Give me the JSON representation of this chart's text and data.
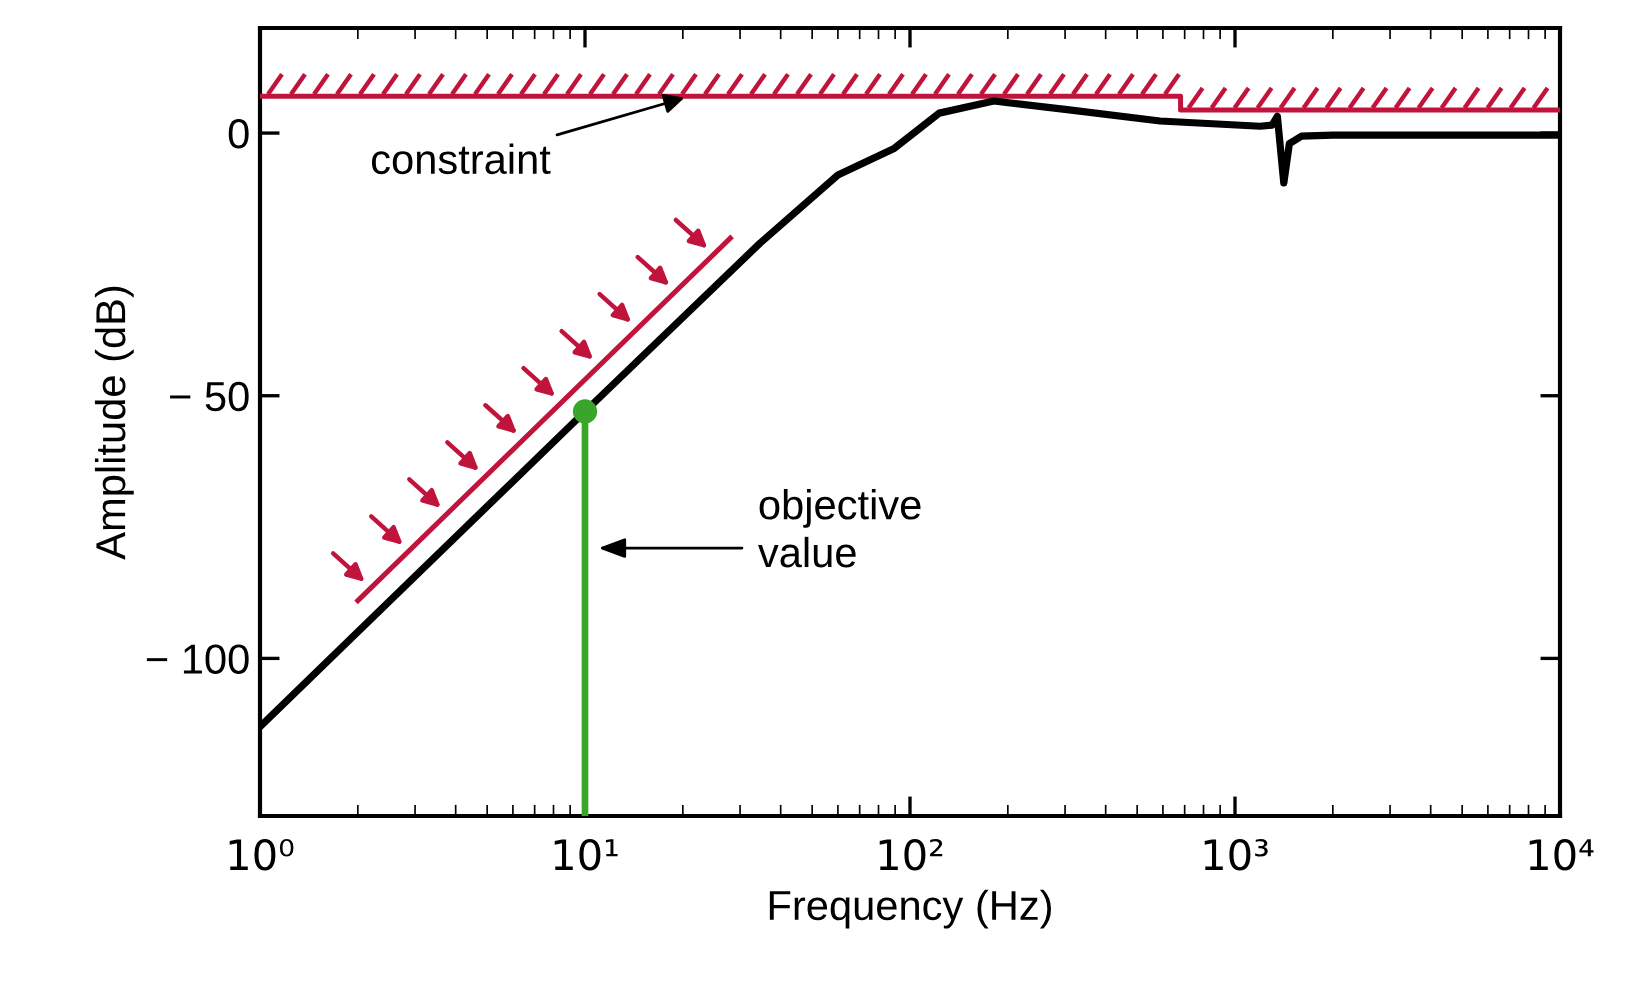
{
  "chart_data": {
    "type": "line",
    "xlabel": "Frequency (Hz)",
    "ylabel": "Amplitude (dB)",
    "log": "x",
    "xlim": [
      1,
      10000
    ],
    "xticks": [
      {
        "value": 1,
        "label": "10⁰"
      },
      {
        "value": 10,
        "label": "10¹"
      },
      {
        "value": 100,
        "label": "10²"
      },
      {
        "value": 1000,
        "label": "10³"
      },
      {
        "value": 10000,
        "label": "10⁴"
      }
    ],
    "ylim": [
      -130,
      20
    ],
    "yticks": [
      {
        "value": -100,
        "label": "− 100"
      },
      {
        "value": -50,
        "label": "− 50"
      },
      0
    ],
    "grid": false,
    "line_style": "solid",
    "series": [
      {
        "type": "step",
        "color": "#c0143c",
        "x": [
          1,
          680,
          10000
        ],
        "values": [
          7,
          4.4,
          4.4
        ]
      },
      {
        "color": "#c0143c",
        "x": [
          2,
          28
        ],
        "values": [
          -89,
          -20
        ]
      },
      {
        "color": "#000000",
        "x": [
          1,
          10,
          34.5,
          60,
          89,
          123,
          181,
          300,
          588,
          1194,
          1300,
          1350,
          1413,
          1470,
          1600,
          2000,
          10000
        ],
        "values": [
          -113,
          -53,
          -21,
          -8,
          -3,
          3.8,
          6.1,
          4.5,
          2.3,
          1.3,
          1.5,
          3.2,
          -9.5,
          -2,
          -0.6,
          -0.4,
          -0.4
        ]
      },
      {
        "color": "#3aa52b",
        "x": [
          10,
          10
        ],
        "values": [
          -130,
          -53
        ]
      },
      {
        "type": "scatter",
        "color": "#3aa52b",
        "marker": "circle",
        "x": [
          10
        ],
        "values": [
          -53
        ]
      }
    ],
    "annotations": [
      {
        "text": "constraint",
        "x": 21,
        "y": 7
      },
      "objective\nvalue"
    ]
  }
}
